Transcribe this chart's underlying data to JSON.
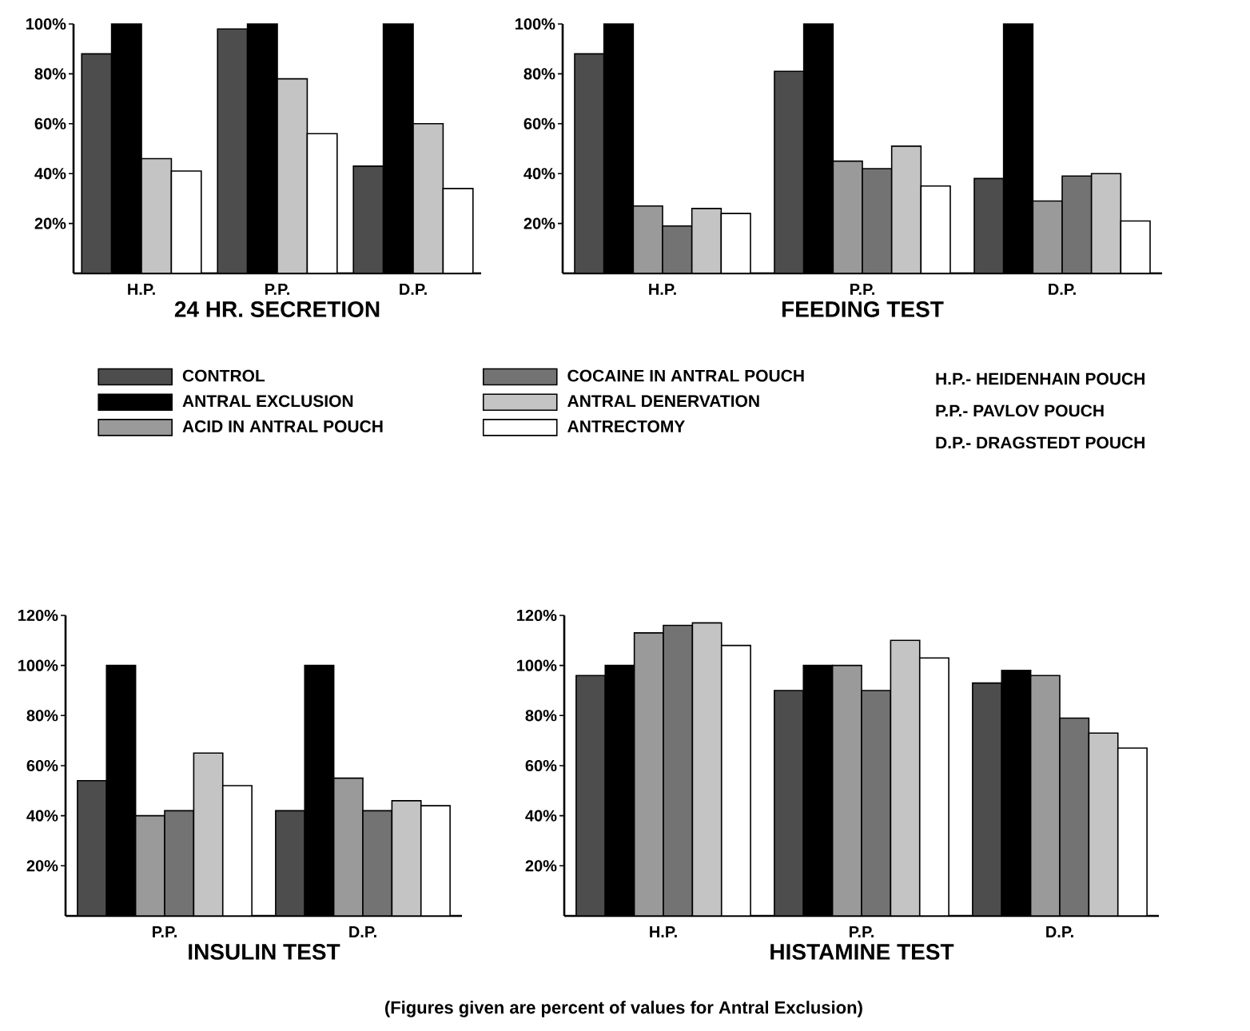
{
  "chart_data": [
    {
      "type": "bar",
      "title": "24 HR. SECRETION",
      "categories": [
        "H.P.",
        "P.P.",
        "D.P."
      ],
      "ylim": [
        0,
        100
      ],
      "yticks": [
        {
          "value": 20,
          "label": "20%"
        },
        {
          "value": 40,
          "label": "40%"
        },
        {
          "value": 60,
          "label": "60%"
        },
        {
          "value": 80,
          "label": "80%"
        },
        {
          "value": 100,
          "label": "100%"
        }
      ],
      "legend": "bottom",
      "annotations": [
        "H.P.- HEIDENHAIN POUCH",
        "P.P.- PAVLOV POUCH",
        "D.P.- DRAGSTEDT POUCH"
      ],
      "series": [
        {
          "name": "CONTROL",
          "color": "#4d4d4d",
          "values": [
            88,
            98,
            43
          ]
        },
        {
          "name": "ANTRAL EXCLUSION",
          "color": "#000000",
          "values": [
            100,
            100,
            100
          ]
        },
        {
          "name": "ACID IN ANTRAL POUCH",
          "color": "#9a9a9a",
          "values": [
            null,
            null,
            null
          ]
        },
        {
          "name": "COCAINE IN ANTRAL POUCH",
          "color": "#737373",
          "values": [
            null,
            null,
            null
          ]
        },
        {
          "name": "ANTRAL DENERVATION",
          "color": "#c4c4c4",
          "values": [
            46,
            78,
            60
          ]
        },
        {
          "name": "ANTRECTOMY",
          "color": "#ffffff",
          "values": [
            41,
            56,
            34
          ]
        }
      ]
    },
    {
      "type": "bar",
      "title": "FEEDING TEST",
      "categories": [
        "H.P.",
        "P.P.",
        "D.P."
      ],
      "ylim": [
        0,
        100
      ],
      "yticks": [
        {
          "value": 20,
          "label": "20%"
        },
        {
          "value": 40,
          "label": "40%"
        },
        {
          "value": 60,
          "label": "60%"
        },
        {
          "value": 80,
          "label": "80%"
        },
        {
          "value": 100,
          "label": "100%"
        }
      ],
      "series": [
        {
          "color": "#4d4d4d",
          "values": [
            88,
            81,
            38
          ]
        },
        {
          "color": "#000000",
          "values": [
            100,
            100,
            100
          ]
        },
        {
          "color": "#9a9a9a",
          "values": [
            27,
            45,
            29
          ]
        },
        {
          "color": "#737373",
          "values": [
            19,
            42,
            39
          ]
        },
        {
          "color": "#c4c4c4",
          "values": [
            26,
            51,
            40
          ]
        },
        {
          "color": "#ffffff",
          "values": [
            24,
            35,
            21
          ]
        }
      ]
    },
    {
      "type": "bar",
      "title": "INSULIN TEST",
      "categories": [
        "P.P.",
        "D.P."
      ],
      "ylim": [
        0,
        120
      ],
      "yticks": [
        {
          "value": 20,
          "label": "20%"
        },
        {
          "value": 40,
          "label": "40%"
        },
        {
          "value": 60,
          "label": "60%"
        },
        {
          "value": 80,
          "label": "80%"
        },
        {
          "value": 100,
          "label": "100%"
        },
        {
          "value": 120,
          "label": "120%"
        }
      ],
      "series": [
        {
          "color": "#4d4d4d",
          "values": [
            54,
            42
          ]
        },
        {
          "color": "#000000",
          "values": [
            100,
            100
          ]
        },
        {
          "color": "#9a9a9a",
          "values": [
            40,
            55
          ]
        },
        {
          "color": "#737373",
          "values": [
            42,
            42
          ]
        },
        {
          "color": "#c4c4c4",
          "values": [
            65,
            46
          ]
        },
        {
          "color": "#ffffff",
          "values": [
            52,
            44
          ]
        }
      ]
    },
    {
      "type": "bar",
      "title": "HISTAMINE TEST",
      "categories": [
        "H.P.",
        "P.P.",
        "D.P."
      ],
      "ylim": [
        0,
        120
      ],
      "yticks": [
        {
          "value": 20,
          "label": "20%"
        },
        {
          "value": 40,
          "label": "40%"
        },
        {
          "value": 60,
          "label": "60%"
        },
        {
          "value": 80,
          "label": "80%"
        },
        {
          "value": 100,
          "label": "100%"
        },
        {
          "value": 120,
          "label": "120%"
        }
      ],
      "annotations": [
        "(Figures given are percent of values for Antral Exclusion)"
      ],
      "series": [
        {
          "color": "#4d4d4d",
          "values": [
            96,
            90,
            93
          ]
        },
        {
          "color": "#000000",
          "values": [
            100,
            100,
            98
          ]
        },
        {
          "color": "#9a9a9a",
          "values": [
            113,
            100,
            96
          ]
        },
        {
          "color": "#737373",
          "values": [
            116,
            90,
            79
          ]
        },
        {
          "color": "#c4c4c4",
          "values": [
            117,
            110,
            73
          ]
        },
        {
          "color": "#ffffff",
          "values": [
            108,
            103,
            67
          ]
        }
      ]
    }
  ]
}
